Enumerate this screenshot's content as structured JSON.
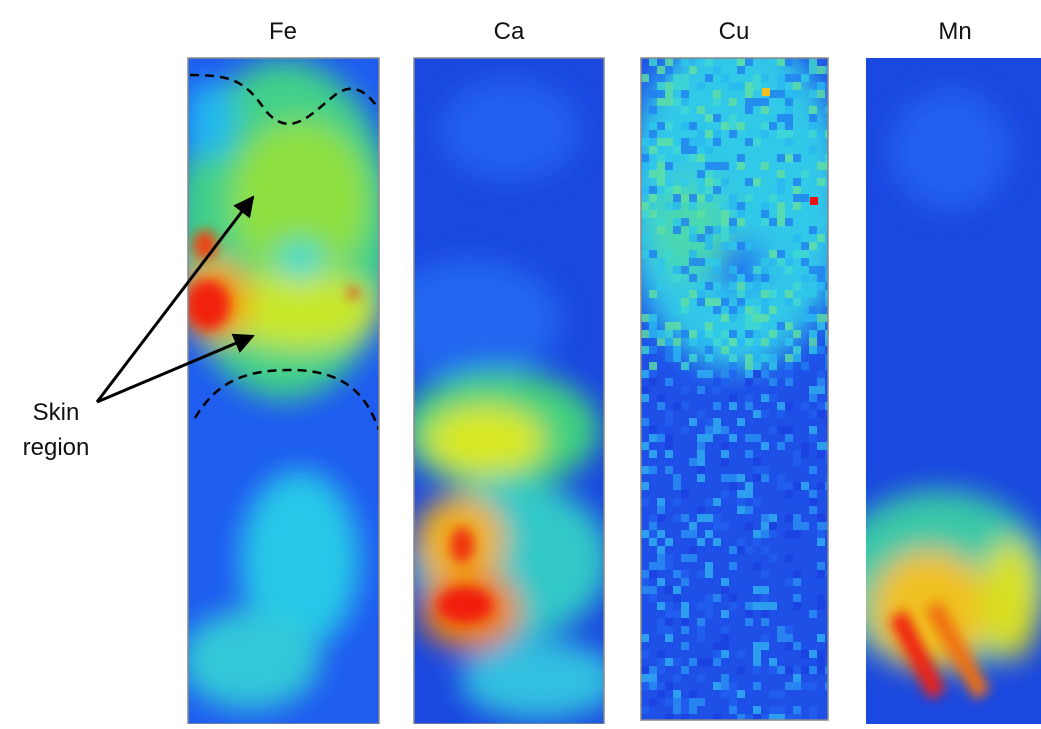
{
  "panels": [
    {
      "label": "Fe"
    },
    {
      "label": "Ca"
    },
    {
      "label": "Cu"
    },
    {
      "label": "Mn"
    }
  ],
  "annotation": {
    "lines": [
      "Skin",
      "region"
    ]
  }
}
